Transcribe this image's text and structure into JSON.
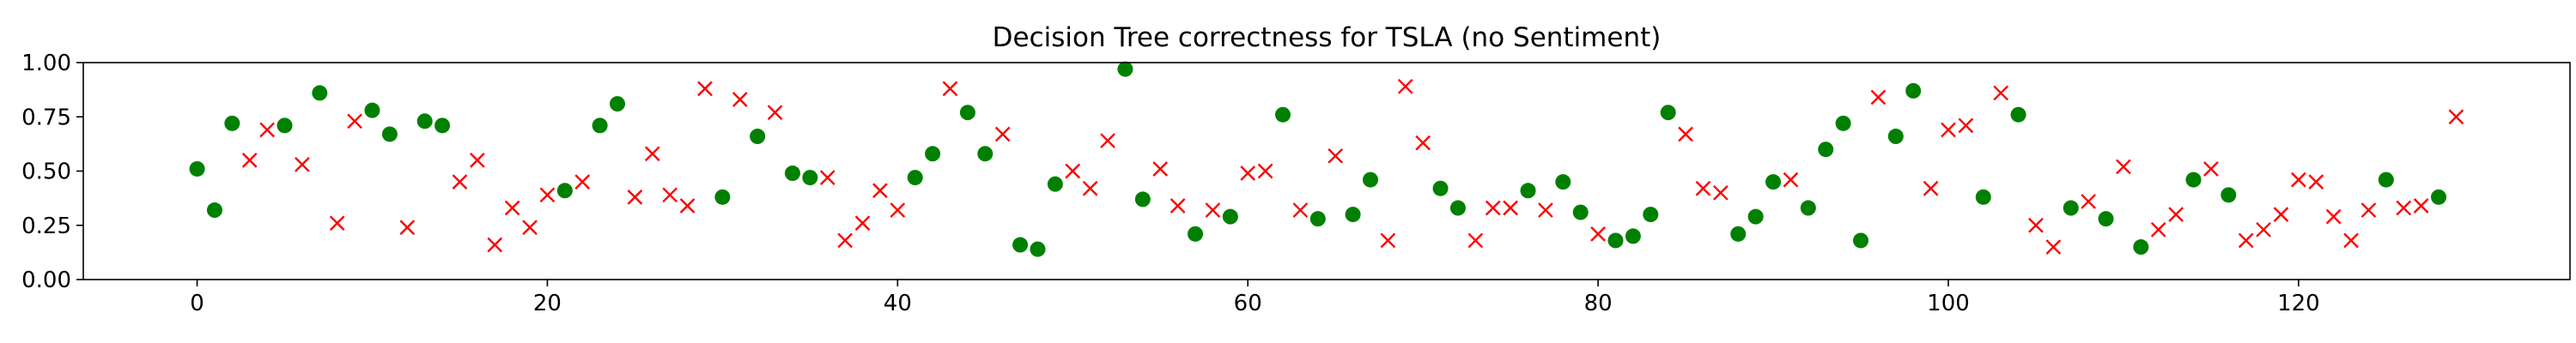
{
  "chart_data": {
    "type": "scatter",
    "title": "Decision Tree correctness for TSLA (no Sentiment)",
    "xlabel": "",
    "ylabel": "",
    "xlim": [
      -6.5,
      135.5
    ],
    "ylim": [
      0.0,
      1.0
    ],
    "xticks": [
      0,
      20,
      40,
      60,
      80,
      100,
      120
    ],
    "yticks": [
      0.0,
      0.25,
      0.5,
      0.75,
      1.0
    ],
    "xtick_labels": [
      "0",
      "20",
      "40",
      "60",
      "80",
      "100",
      "120"
    ],
    "ytick_labels": [
      "0.00",
      "0.25",
      "0.50",
      "0.75",
      "1.00"
    ],
    "grid": false,
    "legend": "none",
    "series": [
      {
        "marker": "circle",
        "color": "#008000",
        "points": [
          [
            0,
            0.51
          ],
          [
            1,
            0.32
          ],
          [
            2,
            0.72
          ],
          [
            5,
            0.71
          ],
          [
            7,
            0.86
          ],
          [
            10,
            0.78
          ],
          [
            11,
            0.67
          ],
          [
            13,
            0.73
          ],
          [
            14,
            0.71
          ],
          [
            21,
            0.41
          ],
          [
            23,
            0.71
          ],
          [
            24,
            0.81
          ],
          [
            30,
            0.38
          ],
          [
            32,
            0.66
          ],
          [
            34,
            0.49
          ],
          [
            35,
            0.47
          ],
          [
            41,
            0.47
          ],
          [
            42,
            0.58
          ],
          [
            44,
            0.77
          ],
          [
            45,
            0.58
          ],
          [
            47,
            0.16
          ],
          [
            48,
            0.14
          ],
          [
            49,
            0.44
          ],
          [
            53,
            0.97
          ],
          [
            54,
            0.37
          ],
          [
            57,
            0.21
          ],
          [
            59,
            0.29
          ],
          [
            62,
            0.76
          ],
          [
            64,
            0.28
          ],
          [
            66,
            0.3
          ],
          [
            67,
            0.46
          ],
          [
            71,
            0.42
          ],
          [
            72,
            0.33
          ],
          [
            76,
            0.41
          ],
          [
            78,
            0.45
          ],
          [
            79,
            0.31
          ],
          [
            81,
            0.18
          ],
          [
            82,
            0.2
          ],
          [
            83,
            0.3
          ],
          [
            84,
            0.77
          ],
          [
            88,
            0.21
          ],
          [
            89,
            0.29
          ],
          [
            90,
            0.45
          ],
          [
            92,
            0.33
          ],
          [
            93,
            0.6
          ],
          [
            94,
            0.72
          ],
          [
            95,
            0.18
          ],
          [
            97,
            0.66
          ],
          [
            98,
            0.87
          ],
          [
            102,
            0.38
          ],
          [
            104,
            0.76
          ],
          [
            107,
            0.33
          ],
          [
            109,
            0.28
          ],
          [
            111,
            0.15
          ],
          [
            114,
            0.46
          ],
          [
            116,
            0.39
          ],
          [
            125,
            0.46
          ],
          [
            128,
            0.38
          ]
        ]
      },
      {
        "marker": "x",
        "color": "#ff0000",
        "points": [
          [
            3,
            0.55
          ],
          [
            4,
            0.69
          ],
          [
            6,
            0.53
          ],
          [
            8,
            0.26
          ],
          [
            9,
            0.73
          ],
          [
            12,
            0.24
          ],
          [
            15,
            0.45
          ],
          [
            16,
            0.55
          ],
          [
            17,
            0.16
          ],
          [
            18,
            0.33
          ],
          [
            19,
            0.24
          ],
          [
            20,
            0.39
          ],
          [
            22,
            0.45
          ],
          [
            25,
            0.38
          ],
          [
            26,
            0.58
          ],
          [
            27,
            0.39
          ],
          [
            28,
            0.34
          ],
          [
            29,
            0.88
          ],
          [
            31,
            0.83
          ],
          [
            33,
            0.77
          ],
          [
            36,
            0.47
          ],
          [
            37,
            0.18
          ],
          [
            38,
            0.26
          ],
          [
            39,
            0.41
          ],
          [
            40,
            0.32
          ],
          [
            43,
            0.88
          ],
          [
            46,
            0.67
          ],
          [
            50,
            0.5
          ],
          [
            51,
            0.42
          ],
          [
            52,
            0.64
          ],
          [
            55,
            0.51
          ],
          [
            56,
            0.34
          ],
          [
            58,
            0.32
          ],
          [
            60,
            0.49
          ],
          [
            61,
            0.5
          ],
          [
            63,
            0.32
          ],
          [
            65,
            0.57
          ],
          [
            68,
            0.18
          ],
          [
            69,
            0.89
          ],
          [
            70,
            0.63
          ],
          [
            73,
            0.18
          ],
          [
            74,
            0.33
          ],
          [
            75,
            0.33
          ],
          [
            77,
            0.32
          ],
          [
            80,
            0.21
          ],
          [
            85,
            0.67
          ],
          [
            86,
            0.42
          ],
          [
            87,
            0.4
          ],
          [
            91,
            0.46
          ],
          [
            96,
            0.84
          ],
          [
            99,
            0.42
          ],
          [
            100,
            0.69
          ],
          [
            101,
            0.71
          ],
          [
            103,
            0.86
          ],
          [
            105,
            0.25
          ],
          [
            106,
            0.15
          ],
          [
            108,
            0.36
          ],
          [
            110,
            0.52
          ],
          [
            112,
            0.23
          ],
          [
            113,
            0.3
          ],
          [
            115,
            0.51
          ],
          [
            117,
            0.18
          ],
          [
            118,
            0.23
          ],
          [
            119,
            0.3
          ],
          [
            120,
            0.46
          ],
          [
            121,
            0.45
          ],
          [
            122,
            0.29
          ],
          [
            123,
            0.18
          ],
          [
            124,
            0.32
          ],
          [
            126,
            0.33
          ],
          [
            127,
            0.34
          ],
          [
            129,
            0.75
          ]
        ]
      }
    ]
  }
}
